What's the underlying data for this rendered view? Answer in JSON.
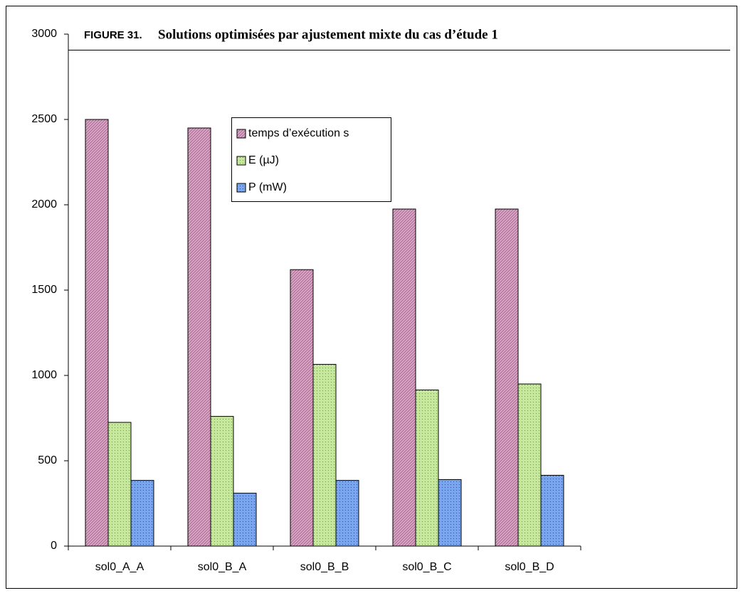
{
  "chart_data": {
    "type": "bar",
    "figure_label": "FIGURE 31.",
    "title": "Solutions optimisées par ajustement mixte du cas d’étude 1",
    "categories": [
      "sol0_A_A",
      "sol0_B_A",
      "sol0_B_B",
      "sol0_B_C",
      "sol0_B_D"
    ],
    "series": [
      {
        "name": "temps d’exécution s",
        "color": "#d9a3c4",
        "values": [
          2500,
          2450,
          1620,
          1975,
          1975
        ]
      },
      {
        "name": "E (µJ)",
        "color": "#c6e89c",
        "values": [
          725,
          760,
          1065,
          915,
          950
        ]
      },
      {
        "name": "P (mW)",
        "color": "#7aa6f0",
        "values": [
          385,
          310,
          385,
          390,
          415
        ]
      }
    ],
    "ylim": [
      0,
      3000
    ],
    "yticks": [
      0,
      500,
      1000,
      1500,
      2000,
      2500,
      3000
    ],
    "grid": false
  }
}
